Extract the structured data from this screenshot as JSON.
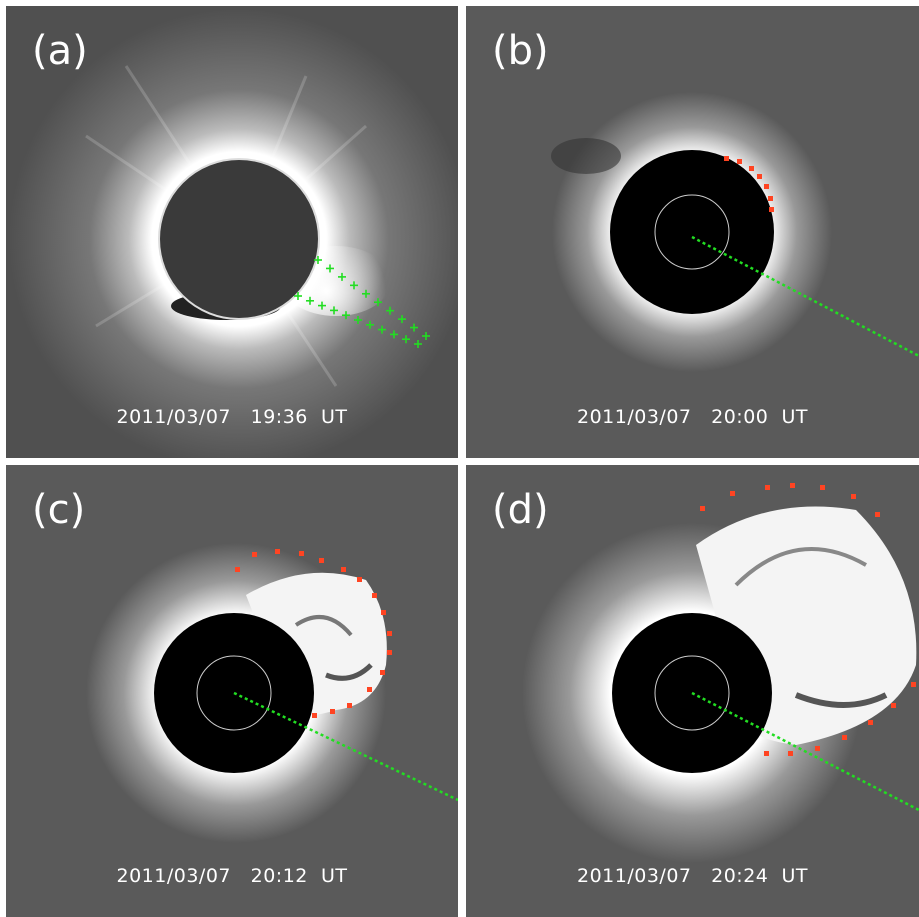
{
  "panels": {
    "a": {
      "label": "(a)",
      "timestamp": "2011/03/07   19:36  UT"
    },
    "b": {
      "label": "(b)",
      "timestamp": "2011/03/07   20:00  UT"
    },
    "c": {
      "label": "(c)",
      "timestamp": "2011/03/07   20:12  UT"
    },
    "d": {
      "label": "(d)",
      "timestamp": "2011/03/07   20:24  UT"
    }
  },
  "colors": {
    "track_marker": "#22dd22",
    "front_marker": "#ff4422"
  }
}
